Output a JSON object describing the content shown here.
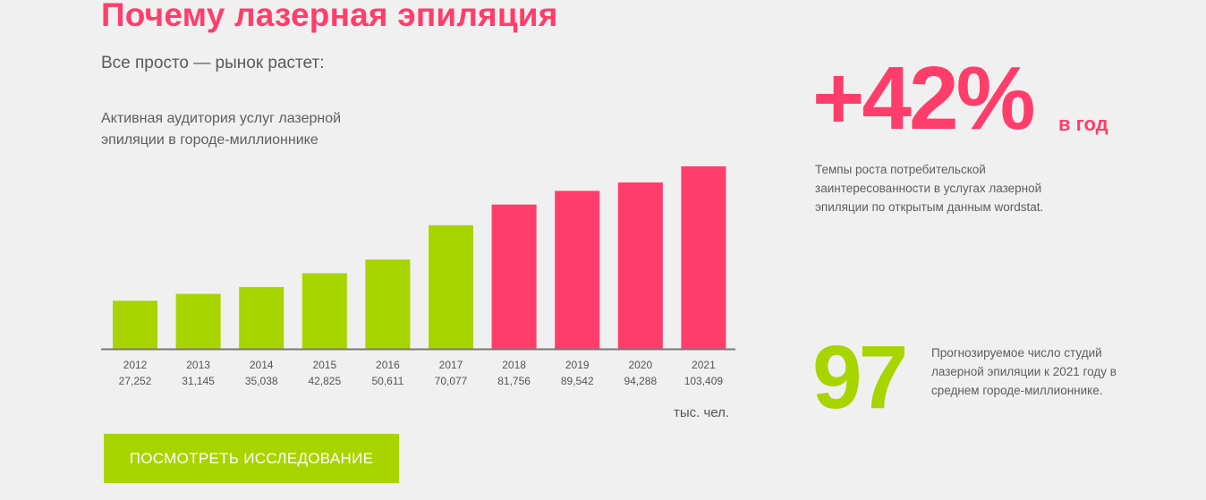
{
  "title": "Почему лазерная эпиляция",
  "subtitle": "Все просто — рынок растет:",
  "description": "Активная аудитория услуг лазерной эпиляции в городе-миллионнике",
  "unit_label": "тыс. чел.",
  "cta_label": "ПОСМОТРЕТЬ ИССЛЕДОВАНИЕ",
  "growth": {
    "value": "+42%",
    "suffix": "в год",
    "text": "Темпы роста потребительской заинтересованности в услугах лазерной эпиляции по открытым данным wordstat."
  },
  "studios": {
    "value": "97",
    "text": "Прогнозируемое число студий лазерной эпиляции к 2021 году в среднем городе-миллионнике."
  },
  "colors": {
    "accent_pink": "#ff3d6b",
    "accent_green": "#a8d400",
    "background": "#f0f0f0"
  },
  "chart_data": {
    "type": "bar",
    "categories": [
      "2012",
      "2013",
      "2014",
      "2015",
      "2016",
      "2017",
      "2018",
      "2019",
      "2020",
      "2021"
    ],
    "values": [
      27252,
      31145,
      35038,
      42825,
      50611,
      70077,
      81756,
      89542,
      94288,
      103409
    ],
    "value_labels": [
      "27,252",
      "31,145",
      "35,038",
      "42,825",
      "50,611",
      "70,077",
      "81,756",
      "89,542",
      "94,288",
      "103,409"
    ],
    "bar_colors": [
      "#a8d400",
      "#a8d400",
      "#a8d400",
      "#a8d400",
      "#a8d400",
      "#a8d400",
      "#ff3d6b",
      "#ff3d6b",
      "#ff3d6b",
      "#ff3d6b"
    ],
    "title": "",
    "xlabel": "",
    "ylabel": "тыс. чел.",
    "grid": false
  }
}
